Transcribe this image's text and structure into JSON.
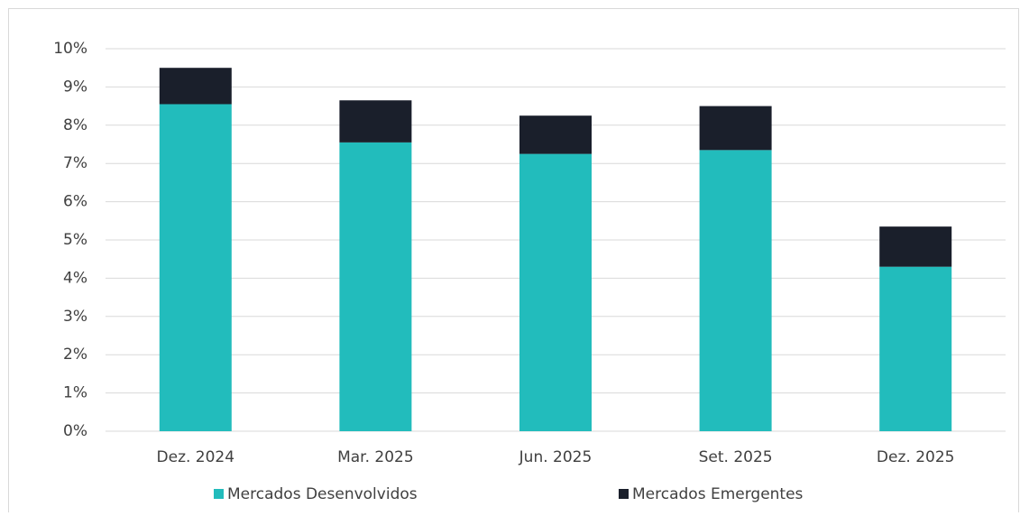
{
  "chart_data": {
    "type": "stacked_bar",
    "categories": [
      "Dez. 2024",
      "Mar. 2025",
      "Jun. 2025",
      "Set. 2025",
      "Dez. 2025"
    ],
    "series": [
      {
        "name": "Mercados Desenvolvidos",
        "color": "#22bcbc",
        "values": [
          8.55,
          7.55,
          7.25,
          7.35,
          4.3
        ]
      },
      {
        "name": "Mercados Emergentes",
        "color": "#1a1f2b",
        "values": [
          0.95,
          1.1,
          1.0,
          1.15,
          1.05
        ]
      }
    ],
    "ylim": [
      0,
      10
    ],
    "yticks": [
      {
        "value": 0,
        "label": "0%"
      },
      {
        "value": 1,
        "label": "1%"
      },
      {
        "value": 2,
        "label": "2%"
      },
      {
        "value": 3,
        "label": "3%"
      },
      {
        "value": 4,
        "label": "4%"
      },
      {
        "value": 5,
        "label": "5%"
      },
      {
        "value": 6,
        "label": "6%"
      },
      {
        "value": 7,
        "label": "7%"
      },
      {
        "value": 8,
        "label": "8%"
      },
      {
        "value": 9,
        "label": "9%"
      },
      {
        "value": 10,
        "label": "10%"
      }
    ],
    "grid": true,
    "legend": "bottom"
  }
}
